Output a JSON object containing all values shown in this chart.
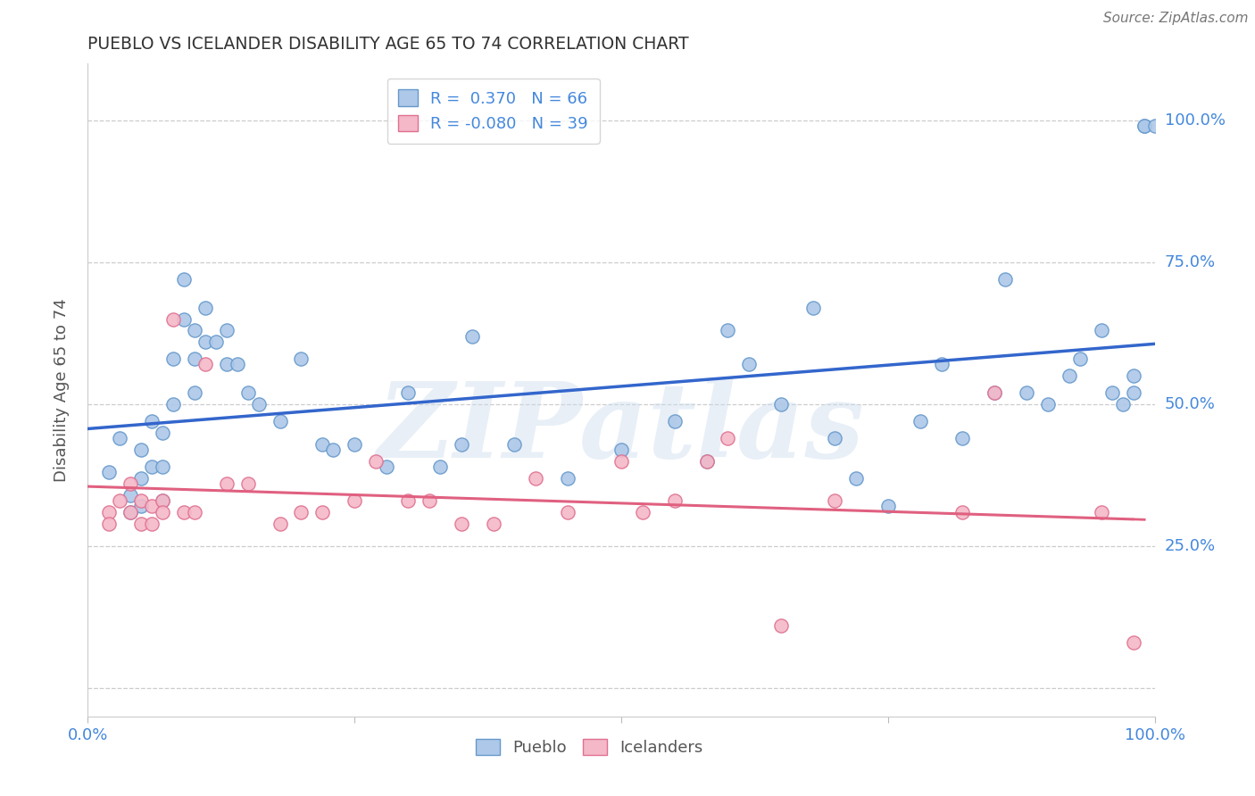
{
  "title": "PUEBLO VS ICELANDER DISABILITY AGE 65 TO 74 CORRELATION CHART",
  "source": "Source: ZipAtlas.com",
  "ylabel": "Disability Age 65 to 74",
  "pueblo_color": "#adc8e8",
  "pueblo_edge_color": "#6699cc",
  "icelander_color": "#f4b8c8",
  "icelander_edge_color": "#e07090",
  "pueblo_line_color": "#3366cc",
  "icelander_line_color": "#e06080",
  "pueblo_R": 0.37,
  "pueblo_N": 66,
  "icelander_R": -0.08,
  "icelander_N": 39,
  "watermark": "ZIPatlas",
  "xlim": [
    0.0,
    1.0
  ],
  "ylim": [
    -0.05,
    1.1
  ],
  "pueblo_x": [
    0.02,
    0.03,
    0.04,
    0.04,
    0.05,
    0.05,
    0.05,
    0.06,
    0.06,
    0.07,
    0.07,
    0.07,
    0.08,
    0.08,
    0.09,
    0.09,
    0.1,
    0.1,
    0.1,
    0.11,
    0.11,
    0.12,
    0.13,
    0.13,
    0.14,
    0.15,
    0.16,
    0.18,
    0.2,
    0.22,
    0.23,
    0.25,
    0.28,
    0.3,
    0.33,
    0.35,
    0.36,
    0.4,
    0.45,
    0.5,
    0.55,
    0.58,
    0.6,
    0.62,
    0.65,
    0.68,
    0.7,
    0.72,
    0.75,
    0.78,
    0.8,
    0.82,
    0.85,
    0.86,
    0.88,
    0.9,
    0.92,
    0.93,
    0.95,
    0.96,
    0.97,
    0.98,
    0.98,
    0.99,
    0.99,
    1.0
  ],
  "pueblo_y": [
    0.38,
    0.44,
    0.34,
    0.31,
    0.42,
    0.37,
    0.32,
    0.47,
    0.39,
    0.45,
    0.39,
    0.33,
    0.58,
    0.5,
    0.65,
    0.72,
    0.63,
    0.58,
    0.52,
    0.67,
    0.61,
    0.61,
    0.63,
    0.57,
    0.57,
    0.52,
    0.5,
    0.47,
    0.58,
    0.43,
    0.42,
    0.43,
    0.39,
    0.52,
    0.39,
    0.43,
    0.62,
    0.43,
    0.37,
    0.42,
    0.47,
    0.4,
    0.63,
    0.57,
    0.5,
    0.67,
    0.44,
    0.37,
    0.32,
    0.47,
    0.57,
    0.44,
    0.52,
    0.72,
    0.52,
    0.5,
    0.55,
    0.58,
    0.63,
    0.52,
    0.5,
    0.55,
    0.52,
    0.99,
    0.99,
    0.99
  ],
  "icelander_x": [
    0.02,
    0.02,
    0.03,
    0.04,
    0.04,
    0.05,
    0.05,
    0.06,
    0.06,
    0.07,
    0.07,
    0.08,
    0.09,
    0.1,
    0.11,
    0.13,
    0.15,
    0.18,
    0.2,
    0.22,
    0.25,
    0.27,
    0.3,
    0.32,
    0.35,
    0.38,
    0.42,
    0.45,
    0.5,
    0.52,
    0.55,
    0.58,
    0.6,
    0.65,
    0.7,
    0.82,
    0.85,
    0.95,
    0.98
  ],
  "icelander_y": [
    0.31,
    0.29,
    0.33,
    0.36,
    0.31,
    0.33,
    0.29,
    0.32,
    0.29,
    0.33,
    0.31,
    0.65,
    0.31,
    0.31,
    0.57,
    0.36,
    0.36,
    0.29,
    0.31,
    0.31,
    0.33,
    0.4,
    0.33,
    0.33,
    0.29,
    0.29,
    0.37,
    0.31,
    0.4,
    0.31,
    0.33,
    0.4,
    0.44,
    0.11,
    0.33,
    0.31,
    0.52,
    0.31,
    0.08
  ]
}
